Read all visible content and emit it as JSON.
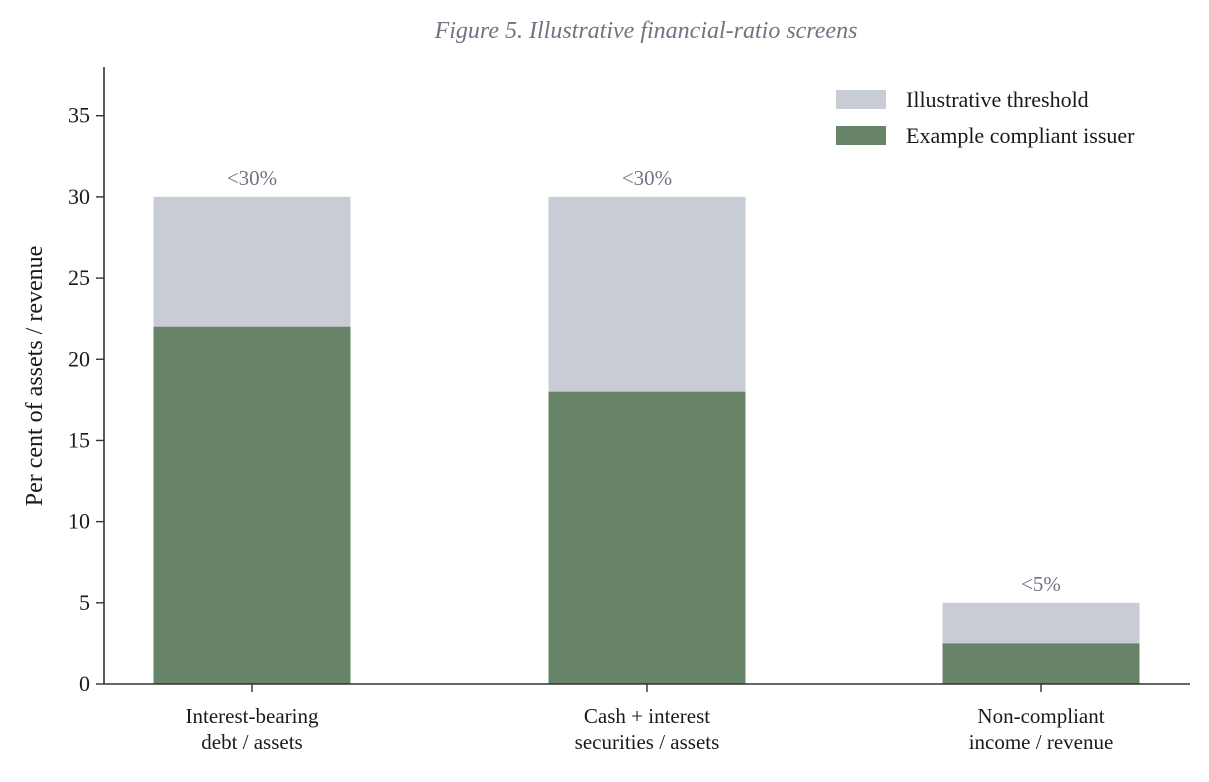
{
  "chart_data": {
    "type": "bar",
    "title": "Figure 5. Illustrative financial-ratio screens",
    "ylabel": "Per cent of assets / revenue",
    "xlabel": "",
    "ylim": [
      0,
      38
    ],
    "yticks": [
      0,
      5,
      10,
      15,
      20,
      25,
      30,
      35
    ],
    "categories": [
      [
        "Interest-bearing",
        "debt / assets"
      ],
      [
        "Cash + interest",
        "securities / assets"
      ],
      [
        "Non-compliant",
        "income / revenue"
      ]
    ],
    "series": [
      {
        "name": "Illustrative threshold",
        "values": [
          30,
          30,
          5
        ],
        "color": "#c8ccd4"
      },
      {
        "name": "Example compliant issuer",
        "values": [
          22,
          18,
          2.5
        ],
        "color": "#678468"
      }
    ],
    "annotations": [
      "<30%",
      "<30%",
      "<5%"
    ],
    "legend_position": "top-right",
    "grid": false,
    "title_color": "#6f7482",
    "annotation_color": "#6f7482"
  }
}
